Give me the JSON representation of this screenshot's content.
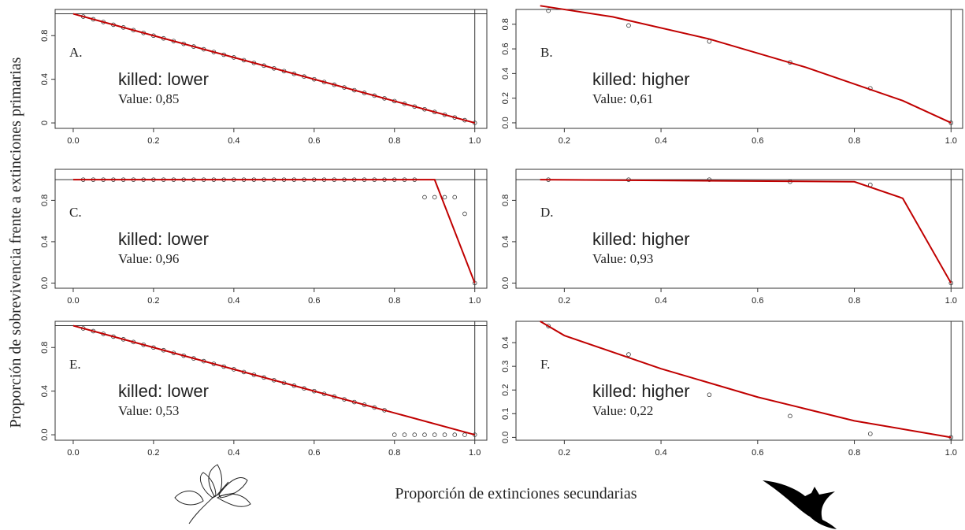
{
  "chart_data": [
    {
      "type": "scatter",
      "panel_label": "A.",
      "killed_label": "killed:  lower",
      "value_label": "Value: 0,85",
      "x": [
        0.025,
        0.05,
        0.075,
        0.1,
        0.125,
        0.15,
        0.175,
        0.2,
        0.225,
        0.25,
        0.275,
        0.3,
        0.325,
        0.35,
        0.375,
        0.4,
        0.425,
        0.45,
        0.475,
        0.5,
        0.525,
        0.55,
        0.575,
        0.6,
        0.625,
        0.65,
        0.675,
        0.7,
        0.725,
        0.75,
        0.775,
        0.8,
        0.825,
        0.85,
        0.875,
        0.9,
        0.925,
        0.95,
        0.975,
        1.0
      ],
      "values": [
        0.975,
        0.95,
        0.925,
        0.9,
        0.875,
        0.85,
        0.825,
        0.8,
        0.775,
        0.75,
        0.725,
        0.7,
        0.675,
        0.65,
        0.625,
        0.6,
        0.575,
        0.55,
        0.525,
        0.5,
        0.475,
        0.45,
        0.425,
        0.4,
        0.375,
        0.35,
        0.325,
        0.3,
        0.275,
        0.25,
        0.225,
        0.2,
        0.175,
        0.15,
        0.125,
        0.1,
        0.075,
        0.05,
        0.025,
        0
      ],
      "fit": {
        "x": [
          0,
          1
        ],
        "values": [
          1,
          0
        ],
        "color": "#c00000"
      },
      "hline": 1,
      "vline": 1,
      "xlim": [
        -0.045,
        1.03
      ],
      "ylim": [
        -0.05,
        1.04
      ],
      "xticks": [
        {
          "value": 0,
          "label": "0.0"
        },
        0.2,
        0.4,
        0.6,
        0.8,
        {
          "value": 1,
          "label": "1.0"
        }
      ],
      "yticks": [
        {
          "value": 0,
          "label": "0"
        },
        0.4,
        0.8
      ]
    },
    {
      "type": "scatter",
      "panel_label": "B.",
      "killed_label": "killed:  higher",
      "value_label": "Value: 0,61",
      "x": [
        0.167,
        0.333,
        0.5,
        0.667,
        0.833,
        1.0
      ],
      "values": [
        0.91,
        0.79,
        0.66,
        0.49,
        0.28,
        0
      ],
      "fit": {
        "x": [
          0.15,
          0.3,
          0.5,
          0.7,
          0.9,
          1.0
        ],
        "values": [
          0.95,
          0.86,
          0.68,
          0.45,
          0.18,
          0
        ],
        "color": "#c00000"
      },
      "vline": 1,
      "xlim": [
        0.1,
        1.024
      ],
      "ylim": [
        -0.045,
        0.92
      ],
      "xticks": [
        0.2,
        0.4,
        0.6,
        0.8,
        {
          "value": 1,
          "label": "1.0"
        }
      ],
      "yticks": [
        {
          "value": 0,
          "label": "0.0"
        },
        0.2,
        0.4,
        0.6,
        0.8
      ]
    },
    {
      "type": "scatter",
      "panel_label": "C.",
      "killed_label": "killed:  lower",
      "value_label": "Value: 0,96",
      "x": [
        0.025,
        0.05,
        0.075,
        0.1,
        0.125,
        0.15,
        0.175,
        0.2,
        0.225,
        0.25,
        0.275,
        0.3,
        0.325,
        0.35,
        0.375,
        0.4,
        0.425,
        0.45,
        0.475,
        0.5,
        0.525,
        0.55,
        0.575,
        0.6,
        0.625,
        0.65,
        0.675,
        0.7,
        0.725,
        0.75,
        0.775,
        0.8,
        0.825,
        0.85,
        0.875,
        0.9,
        0.925,
        0.95,
        0.975,
        1.0
      ],
      "values": [
        1,
        1,
        1,
        1,
        1,
        1,
        1,
        1,
        1,
        1,
        1,
        1,
        1,
        1,
        1,
        1,
        1,
        1,
        1,
        1,
        1,
        1,
        1,
        1,
        1,
        1,
        1,
        1,
        1,
        1,
        1,
        1,
        1,
        1,
        0.83,
        0.83,
        0.83,
        0.83,
        0.67,
        0
      ],
      "fit": {
        "x": [
          0,
          0.9,
          1
        ],
        "values": [
          1,
          1,
          0
        ],
        "color": "#c00000"
      },
      "hline": 1,
      "vline": 1,
      "xlim": [
        -0.045,
        1.03
      ],
      "ylim": [
        -0.05,
        1.1
      ],
      "xticks": [
        {
          "value": 0,
          "label": "0.0"
        },
        0.2,
        0.4,
        0.6,
        0.8,
        {
          "value": 1,
          "label": "1.0"
        }
      ],
      "yticks": [
        {
          "value": 0,
          "label": "0.0"
        },
        0.4,
        0.8
      ]
    },
    {
      "type": "scatter",
      "panel_label": "D.",
      "killed_label": "killed:  higher",
      "value_label": "Value: 0,93",
      "x": [
        0.167,
        0.333,
        0.5,
        0.667,
        0.833,
        1.0
      ],
      "values": [
        1,
        1,
        1,
        0.98,
        0.95,
        0
      ],
      "fit": {
        "x": [
          0.15,
          0.8,
          0.9,
          1.0
        ],
        "values": [
          1,
          0.98,
          0.82,
          0
        ],
        "color": "#c00000"
      },
      "hline": 1,
      "vline": 1,
      "xlim": [
        0.1,
        1.024
      ],
      "ylim": [
        -0.05,
        1.1
      ],
      "xticks": [
        0.2,
        0.4,
        0.6,
        0.8,
        {
          "value": 1,
          "label": "1.0"
        }
      ],
      "yticks": [
        {
          "value": 0,
          "label": "0.0"
        },
        0.4,
        0.8
      ]
    },
    {
      "type": "scatter",
      "panel_label": "E.",
      "killed_label": "killed:  lower",
      "value_label": "Value: 0,53",
      "x": [
        0.025,
        0.05,
        0.075,
        0.1,
        0.125,
        0.15,
        0.175,
        0.2,
        0.225,
        0.25,
        0.275,
        0.3,
        0.325,
        0.35,
        0.375,
        0.4,
        0.425,
        0.45,
        0.475,
        0.5,
        0.525,
        0.55,
        0.575,
        0.6,
        0.625,
        0.65,
        0.675,
        0.7,
        0.725,
        0.75,
        0.775,
        0.8,
        0.825,
        0.85,
        0.875,
        0.9,
        0.925,
        0.95,
        0.975,
        1.0
      ],
      "values": [
        0.975,
        0.95,
        0.925,
        0.9,
        0.875,
        0.85,
        0.825,
        0.8,
        0.775,
        0.75,
        0.725,
        0.7,
        0.675,
        0.65,
        0.625,
        0.6,
        0.575,
        0.55,
        0.525,
        0.5,
        0.475,
        0.45,
        0.425,
        0.4,
        0.375,
        0.35,
        0.325,
        0.3,
        0.275,
        0.25,
        0.225,
        0,
        0,
        0,
        0,
        0,
        0,
        0,
        0,
        0
      ],
      "fit": {
        "x": [
          0,
          1
        ],
        "values": [
          1,
          0
        ],
        "color": "#c00000"
      },
      "hline": 1,
      "vline": 1,
      "xlim": [
        -0.045,
        1.03
      ],
      "ylim": [
        -0.05,
        1.04
      ],
      "xticks": [
        {
          "value": 0,
          "label": "0.0"
        },
        0.2,
        0.4,
        0.6,
        0.8,
        {
          "value": 1,
          "label": "1.0"
        }
      ],
      "yticks": [
        {
          "value": 0,
          "label": "0.0"
        },
        0.4,
        0.8
      ]
    },
    {
      "type": "scatter",
      "panel_label": "F.",
      "killed_label": "killed:  higher",
      "value_label": "Value: 0,22",
      "x": [
        0.167,
        0.333,
        0.5,
        0.667,
        0.833,
        1.0
      ],
      "values": [
        0.47,
        0.35,
        0.18,
        0.09,
        0.015,
        0
      ],
      "fit": {
        "x": [
          0.15,
          0.2,
          0.4,
          0.6,
          0.8,
          1.0
        ],
        "values": [
          0.49,
          0.43,
          0.29,
          0.17,
          0.07,
          0
        ],
        "color": "#c00000"
      },
      "vline": 1,
      "xlim": [
        0.1,
        1.024
      ],
      "ylim": [
        -0.012,
        0.49
      ],
      "xticks": [
        0.2,
        0.4,
        0.6,
        0.8,
        {
          "value": 1,
          "label": "1.0"
        }
      ],
      "yticks": [
        {
          "value": 0,
          "label": "0.0"
        },
        0.1,
        0.2,
        0.3,
        0.4
      ]
    }
  ],
  "y_label": "Proporción de sobrevivencia frente a extinciones primarias",
  "x_label": "Proporción de extinciones secundarias"
}
